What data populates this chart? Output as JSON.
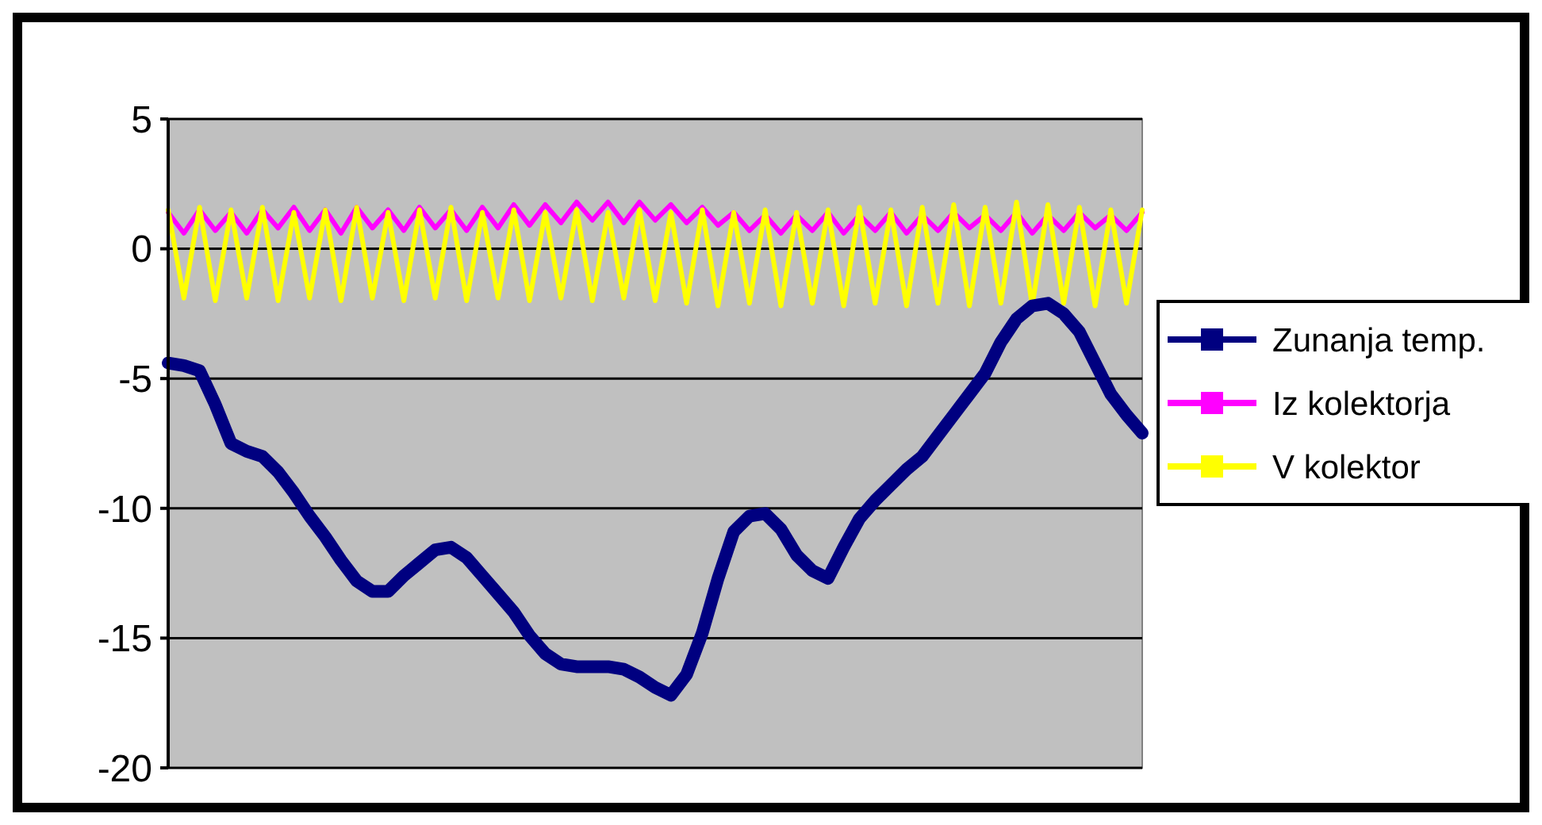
{
  "chart_data": {
    "type": "line",
    "categories": [
      null,
      null,
      null,
      null,
      null,
      null,
      null,
      null,
      null,
      null,
      null,
      null,
      null,
      null,
      null,
      null,
      null,
      null,
      null,
      null,
      null,
      null,
      null,
      null,
      null,
      null,
      null,
      null,
      null,
      null,
      null,
      null,
      null,
      null,
      null,
      null,
      null,
      null,
      null,
      null,
      null,
      null,
      null,
      null,
      null,
      null,
      null,
      null,
      null,
      null,
      null,
      null,
      null,
      null,
      null,
      null,
      null,
      null,
      null,
      null,
      null,
      null,
      null
    ],
    "ylim": [
      -20,
      5
    ],
    "yticks": [
      -20,
      -15,
      -10,
      -5,
      0,
      5
    ],
    "grid": "y",
    "legend": "right",
    "tick_labels": "y",
    "series": [
      {
        "name": "Iz kolektorja",
        "color": "#ff00ff",
        "values": [
          1.4,
          0.6,
          1.5,
          0.7,
          1.4,
          0.6,
          1.5,
          0.8,
          1.6,
          0.7,
          1.5,
          0.6,
          1.6,
          0.8,
          1.5,
          0.7,
          1.6,
          0.8,
          1.5,
          0.7,
          1.6,
          0.8,
          1.7,
          0.9,
          1.7,
          1.0,
          1.8,
          1.1,
          1.8,
          1.0,
          1.8,
          1.1,
          1.7,
          1.0,
          1.6,
          0.9,
          1.4,
          0.7,
          1.3,
          0.6,
          1.3,
          0.7,
          1.4,
          0.6,
          1.3,
          0.7,
          1.4,
          0.6,
          1.3,
          0.7,
          1.4,
          0.8,
          1.3,
          0.7,
          1.4,
          0.6,
          1.3,
          0.7,
          1.4,
          0.8,
          1.3,
          0.7,
          1.4
        ]
      },
      {
        "name": "V kolektor",
        "color": "#ffff00",
        "values": [
          1.5,
          -1.9,
          1.6,
          -2.0,
          1.5,
          -1.9,
          1.6,
          -2.0,
          1.4,
          -1.9,
          1.5,
          -2.0,
          1.6,
          -1.9,
          1.4,
          -2.0,
          1.5,
          -1.9,
          1.6,
          -2.0,
          1.4,
          -1.9,
          1.5,
          -2.0,
          1.4,
          -1.9,
          1.5,
          -2.0,
          1.4,
          -1.9,
          1.5,
          -2.0,
          1.4,
          -2.1,
          1.5,
          -2.2,
          1.4,
          -2.1,
          1.5,
          -2.2,
          1.4,
          -2.1,
          1.5,
          -2.2,
          1.6,
          -2.1,
          1.5,
          -2.2,
          1.6,
          -2.1,
          1.7,
          -2.2,
          1.6,
          -2.1,
          1.8,
          -2.2,
          1.7,
          -2.1,
          1.6,
          -2.2,
          1.5,
          -2.1,
          1.5
        ]
      },
      {
        "name": "Zunanja temp.",
        "color": "#000080",
        "values": [
          -4.4,
          -4.5,
          -4.7,
          -6.0,
          -7.5,
          -7.8,
          -8.0,
          -8.6,
          -9.4,
          -10.3,
          -11.1,
          -12.0,
          -12.8,
          -13.2,
          -13.2,
          -12.6,
          -12.1,
          -11.6,
          -11.5,
          -11.9,
          -12.6,
          -13.3,
          -14.0,
          -14.9,
          -15.6,
          -16.0,
          -16.1,
          -16.1,
          -16.1,
          -16.2,
          -16.5,
          -16.9,
          -17.2,
          -16.4,
          -14.8,
          -12.7,
          -10.9,
          -10.3,
          -10.2,
          -10.8,
          -11.8,
          -12.4,
          -12.7,
          -11.5,
          -10.4,
          -9.7,
          -9.1,
          -8.5,
          -8.0,
          -7.2,
          -6.4,
          -5.6,
          -4.8,
          -3.6,
          -2.7,
          -2.2,
          -2.1,
          -2.5,
          -3.2,
          -4.4,
          -5.6,
          -6.4,
          -7.1
        ]
      }
    ]
  }
}
